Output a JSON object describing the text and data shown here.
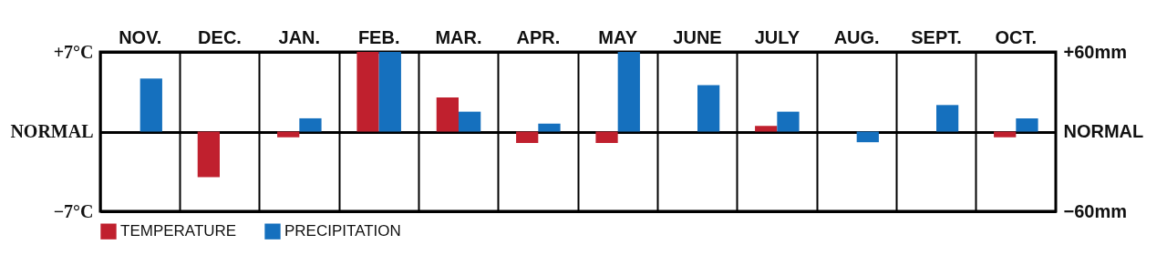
{
  "chart_data": {
    "type": "bar",
    "categories": [
      "NOV.",
      "DEC.",
      "JAN.",
      "FEB.",
      "MAR.",
      "APR.",
      "MAY",
      "JUNE",
      "JULY",
      "AUG.",
      "SEPT.",
      "OCT."
    ],
    "series": [
      {
        "name": "TEMPERATURE",
        "color": "#c0202e",
        "values": [
          null,
          -4,
          -0.5,
          7,
          3,
          -1,
          -1,
          null,
          0.5,
          null,
          null,
          -0.5
        ]
      },
      {
        "name": "PRECIPITATION",
        "color": "#1570be",
        "axis": "y2",
        "values": [
          40,
          null,
          10,
          60,
          15,
          6,
          60,
          35,
          15,
          -8,
          20,
          10
        ]
      }
    ],
    "ylim": [
      -7,
      7
    ],
    "yticks": [
      {
        "value": -7,
        "label": "−7°C"
      },
      {
        "value": 0,
        "label": "NORMAL"
      },
      {
        "value": 7,
        "label": "+7°C"
      }
    ],
    "y2lim": [
      -60,
      60
    ],
    "y2ticks": [
      {
        "value": -60,
        "label": "−60mm"
      },
      {
        "value": 0,
        "label": "NORMAL"
      },
      {
        "value": 60,
        "label": "+60mm"
      }
    ],
    "grid": true,
    "legend": "bottom left"
  }
}
